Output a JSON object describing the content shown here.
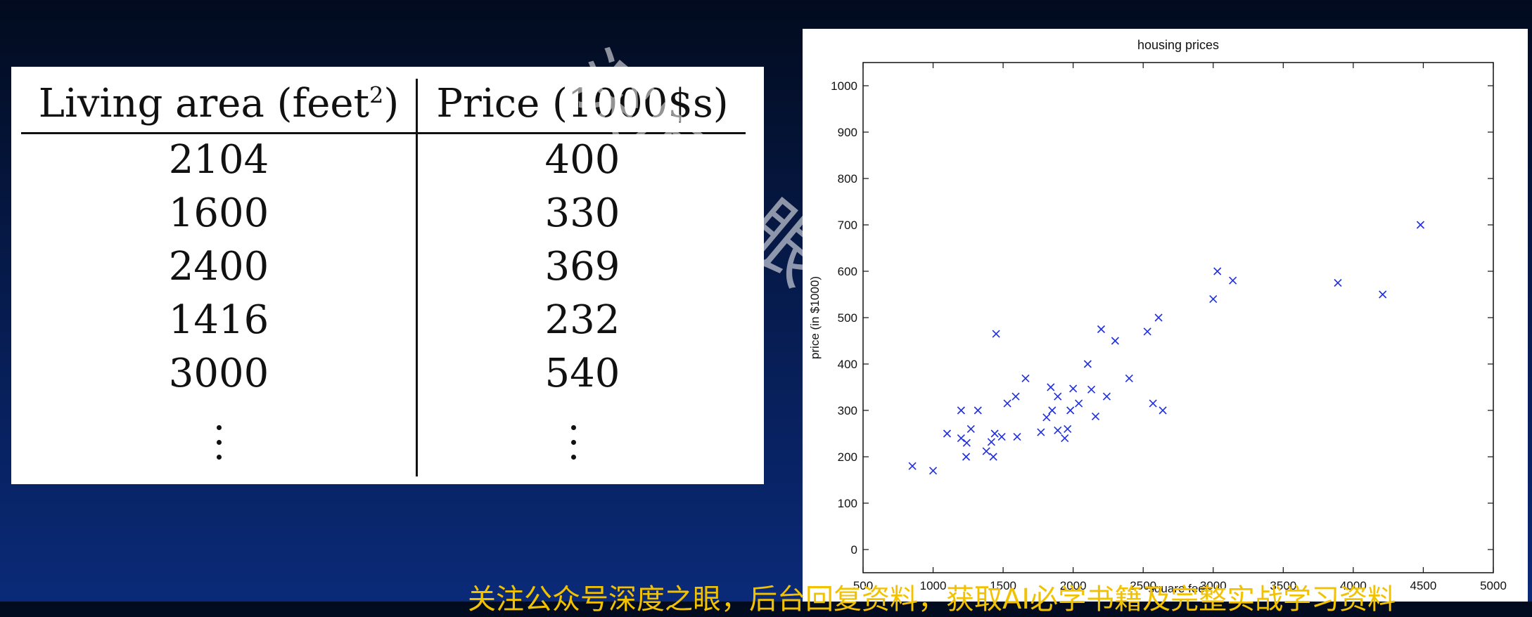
{
  "table": {
    "header_area": "Living area (feet",
    "header_area_sup": "2",
    "header_area_close": ")",
    "header_price": "Price (1000$s)",
    "rows": [
      {
        "area": "2104",
        "price": "400"
      },
      {
        "area": "1600",
        "price": "330"
      },
      {
        "area": "2400",
        "price": "369"
      },
      {
        "area": "1416",
        "price": "232"
      },
      {
        "area": "3000",
        "price": "540"
      }
    ]
  },
  "chart_data": {
    "type": "scatter",
    "title": "housing prices",
    "xlabel": "square feet",
    "ylabel": "price (in $1000)",
    "xlim": [
      500,
      5000
    ],
    "ylim": [
      -50,
      1050
    ],
    "xticks": [
      500,
      1000,
      1500,
      2000,
      2500,
      3000,
      3500,
      4000,
      4500,
      5000
    ],
    "yticks": [
      0,
      100,
      200,
      300,
      400,
      500,
      600,
      700,
      800,
      900,
      1000
    ],
    "marker": "x",
    "color": "#1f2fe0",
    "grid": false,
    "points": [
      [
        852,
        180
      ],
      [
        1000,
        170
      ],
      [
        1100,
        250
      ],
      [
        1200,
        300
      ],
      [
        1200,
        240
      ],
      [
        1236,
        200
      ],
      [
        1240,
        230
      ],
      [
        1270,
        260
      ],
      [
        1320,
        300
      ],
      [
        1380,
        212
      ],
      [
        1416,
        232
      ],
      [
        1430,
        200
      ],
      [
        1440,
        250
      ],
      [
        1450,
        465
      ],
      [
        1490,
        243
      ],
      [
        1530,
        315
      ],
      [
        1590,
        330
      ],
      [
        1600,
        243
      ],
      [
        1660,
        369
      ],
      [
        1770,
        253
      ],
      [
        1810,
        285
      ],
      [
        1840,
        350
      ],
      [
        1850,
        300
      ],
      [
        1890,
        330
      ],
      [
        1890,
        257
      ],
      [
        1940,
        240
      ],
      [
        1960,
        260
      ],
      [
        1980,
        300
      ],
      [
        2000,
        347
      ],
      [
        2040,
        315
      ],
      [
        2104,
        400
      ],
      [
        2130,
        345
      ],
      [
        2160,
        287
      ],
      [
        2200,
        475
      ],
      [
        2240,
        330
      ],
      [
        2300,
        450
      ],
      [
        2400,
        369
      ],
      [
        2530,
        470
      ],
      [
        2570,
        315
      ],
      [
        2610,
        500
      ],
      [
        2640,
        300
      ],
      [
        3000,
        540
      ],
      [
        3030,
        600
      ],
      [
        3140,
        580
      ],
      [
        3890,
        575
      ],
      [
        4210,
        550
      ],
      [
        4480,
        700
      ]
    ]
  },
  "footer": {
    "banner": "关注公众号深度之眼，后台回复资料，获取AI必学书籍及完整实战学习资料"
  },
  "watermark": {
    "text": "深度之眼"
  }
}
